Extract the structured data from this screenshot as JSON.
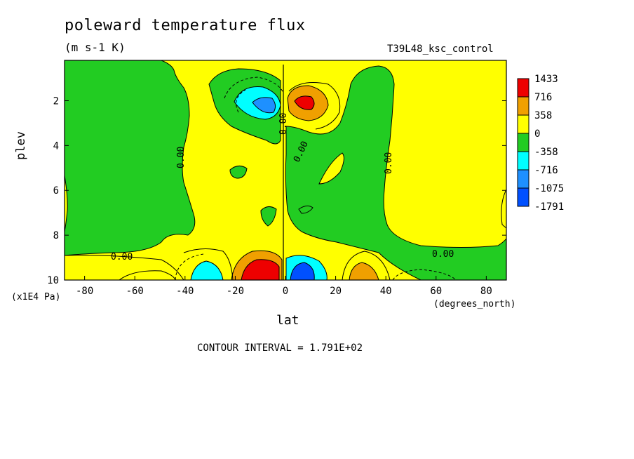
{
  "chart_data": {
    "type": "heatmap",
    "title": "poleward temperature flux",
    "units": "(m s-1 K)",
    "run_label": "T39L48_ksc_control",
    "xlabel": "lat",
    "xunits": "(degrees_north)",
    "ylabel": "plev",
    "yunits": "(x1E4 Pa)",
    "contour_interval_text": "CONTOUR INTERVAL = 1.791E+02",
    "xlim": [
      -88,
      88
    ],
    "ylim": [
      10,
      0.2
    ],
    "x_ticks": [
      "-80",
      "-60",
      "-40",
      "-20",
      "0",
      "20",
      "40",
      "60",
      "80"
    ],
    "x_tick_values": [
      -80,
      -60,
      -40,
      -20,
      0,
      20,
      40,
      60,
      80
    ],
    "y_ticks": [
      "2",
      "4",
      "6",
      "8",
      "10"
    ],
    "y_tick_values": [
      2,
      4,
      6,
      8,
      10
    ],
    "legend": {
      "levels": [
        "1433",
        "716",
        "358",
        "0",
        "-358",
        "-716",
        "-1075",
        "-1791"
      ],
      "colors": [
        "#ee0000",
        "#f0a000",
        "#ffff00",
        "#22cc22",
        "#00ffff",
        "#1e90ff",
        "#0050ff"
      ]
    },
    "contour_labels": [
      "0.00",
      "0.00",
      "0.00",
      "0.00",
      "0.00",
      "0.00"
    ],
    "features": [
      {
        "kind": "max",
        "lat": 8,
        "plev": 2.0,
        "value": 1433
      },
      {
        "kind": "min",
        "lat": -8,
        "plev": 2.0,
        "value": -1075
      },
      {
        "kind": "max",
        "lat": -7,
        "plev": 9.6,
        "value": 1433
      },
      {
        "kind": "min",
        "lat": 5,
        "plev": 9.7,
        "value": -1075
      },
      {
        "kind": "min",
        "lat": -30,
        "plev": 9.6,
        "value": -716
      },
      {
        "kind": "max",
        "lat": 30,
        "plev": 9.6,
        "value": 716
      }
    ]
  }
}
